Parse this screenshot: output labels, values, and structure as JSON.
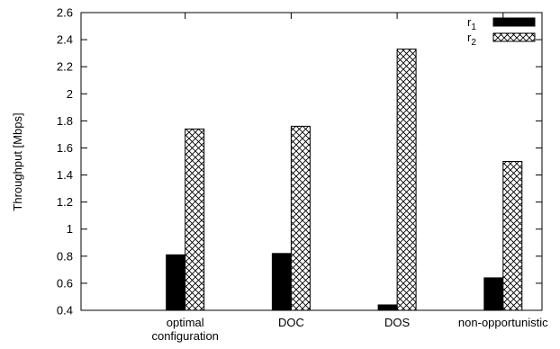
{
  "chart_data": {
    "type": "bar",
    "categories": [
      "optimal\nconfiguration",
      "DOC",
      "DOS",
      "non-opportunistic"
    ],
    "series": [
      {
        "name": "r",
        "subscript": "1",
        "values": [
          0.81,
          0.82,
          0.44,
          0.64
        ],
        "pattern": "solid",
        "color": "#000000"
      },
      {
        "name": "r",
        "subscript": "2",
        "values": [
          1.74,
          1.76,
          2.33,
          1.5
        ],
        "pattern": "crosshatch",
        "color": "#000000"
      }
    ],
    "title": "",
    "xlabel": "",
    "ylabel": "Throughput [Mbps]",
    "ylim": [
      0.4,
      2.6
    ],
    "yticks": [
      0.4,
      0.6,
      0.8,
      1,
      1.2,
      1.4,
      1.6,
      1.8,
      2,
      2.2,
      2.4,
      2.6
    ],
    "grid": false,
    "legend_position": "top-right"
  }
}
